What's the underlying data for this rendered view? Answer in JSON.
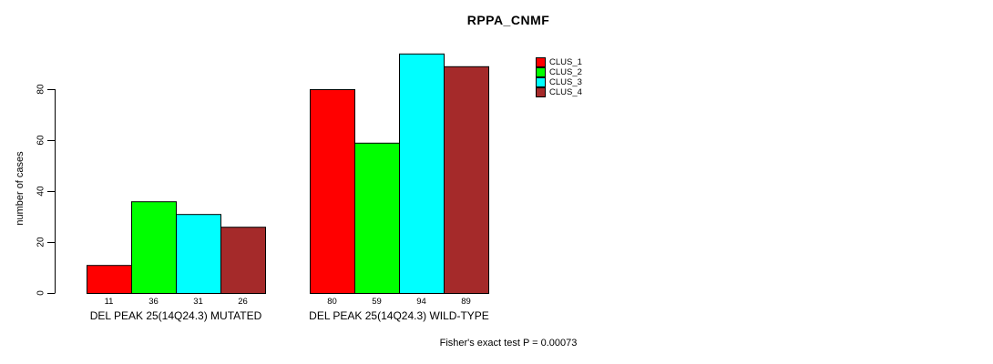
{
  "page": {
    "background": "#FFFFFF"
  },
  "chart_data": {
    "type": "bar",
    "title": "RPPA_CNMF",
    "ylabel": "number of cases",
    "xlabel": "",
    "ylim": [
      0,
      80
    ],
    "yticks": [
      0,
      20,
      40,
      60,
      80
    ],
    "grid": false,
    "legend_position": "top-right",
    "categories": [
      "DEL PEAK 25(14Q24.3) MUTATED",
      "DEL PEAK 25(14Q24.3) WILD-TYPE"
    ],
    "series": [
      {
        "name": "CLUS_1",
        "color": "#FF0000",
        "values": [
          11,
          80
        ]
      },
      {
        "name": "CLUS_2",
        "color": "#00FF00",
        "values": [
          36,
          59
        ]
      },
      {
        "name": "CLUS_3",
        "color": "#00FFFF",
        "values": [
          31,
          94
        ]
      },
      {
        "name": "CLUS_4",
        "color": "#A52A2A",
        "values": [
          26,
          89
        ]
      }
    ],
    "bar_value_labels_shown": true,
    "annotation": "Fisher's exact test P = 0.00073",
    "axis_color": "#000000",
    "bar_border_color": "#000000"
  }
}
